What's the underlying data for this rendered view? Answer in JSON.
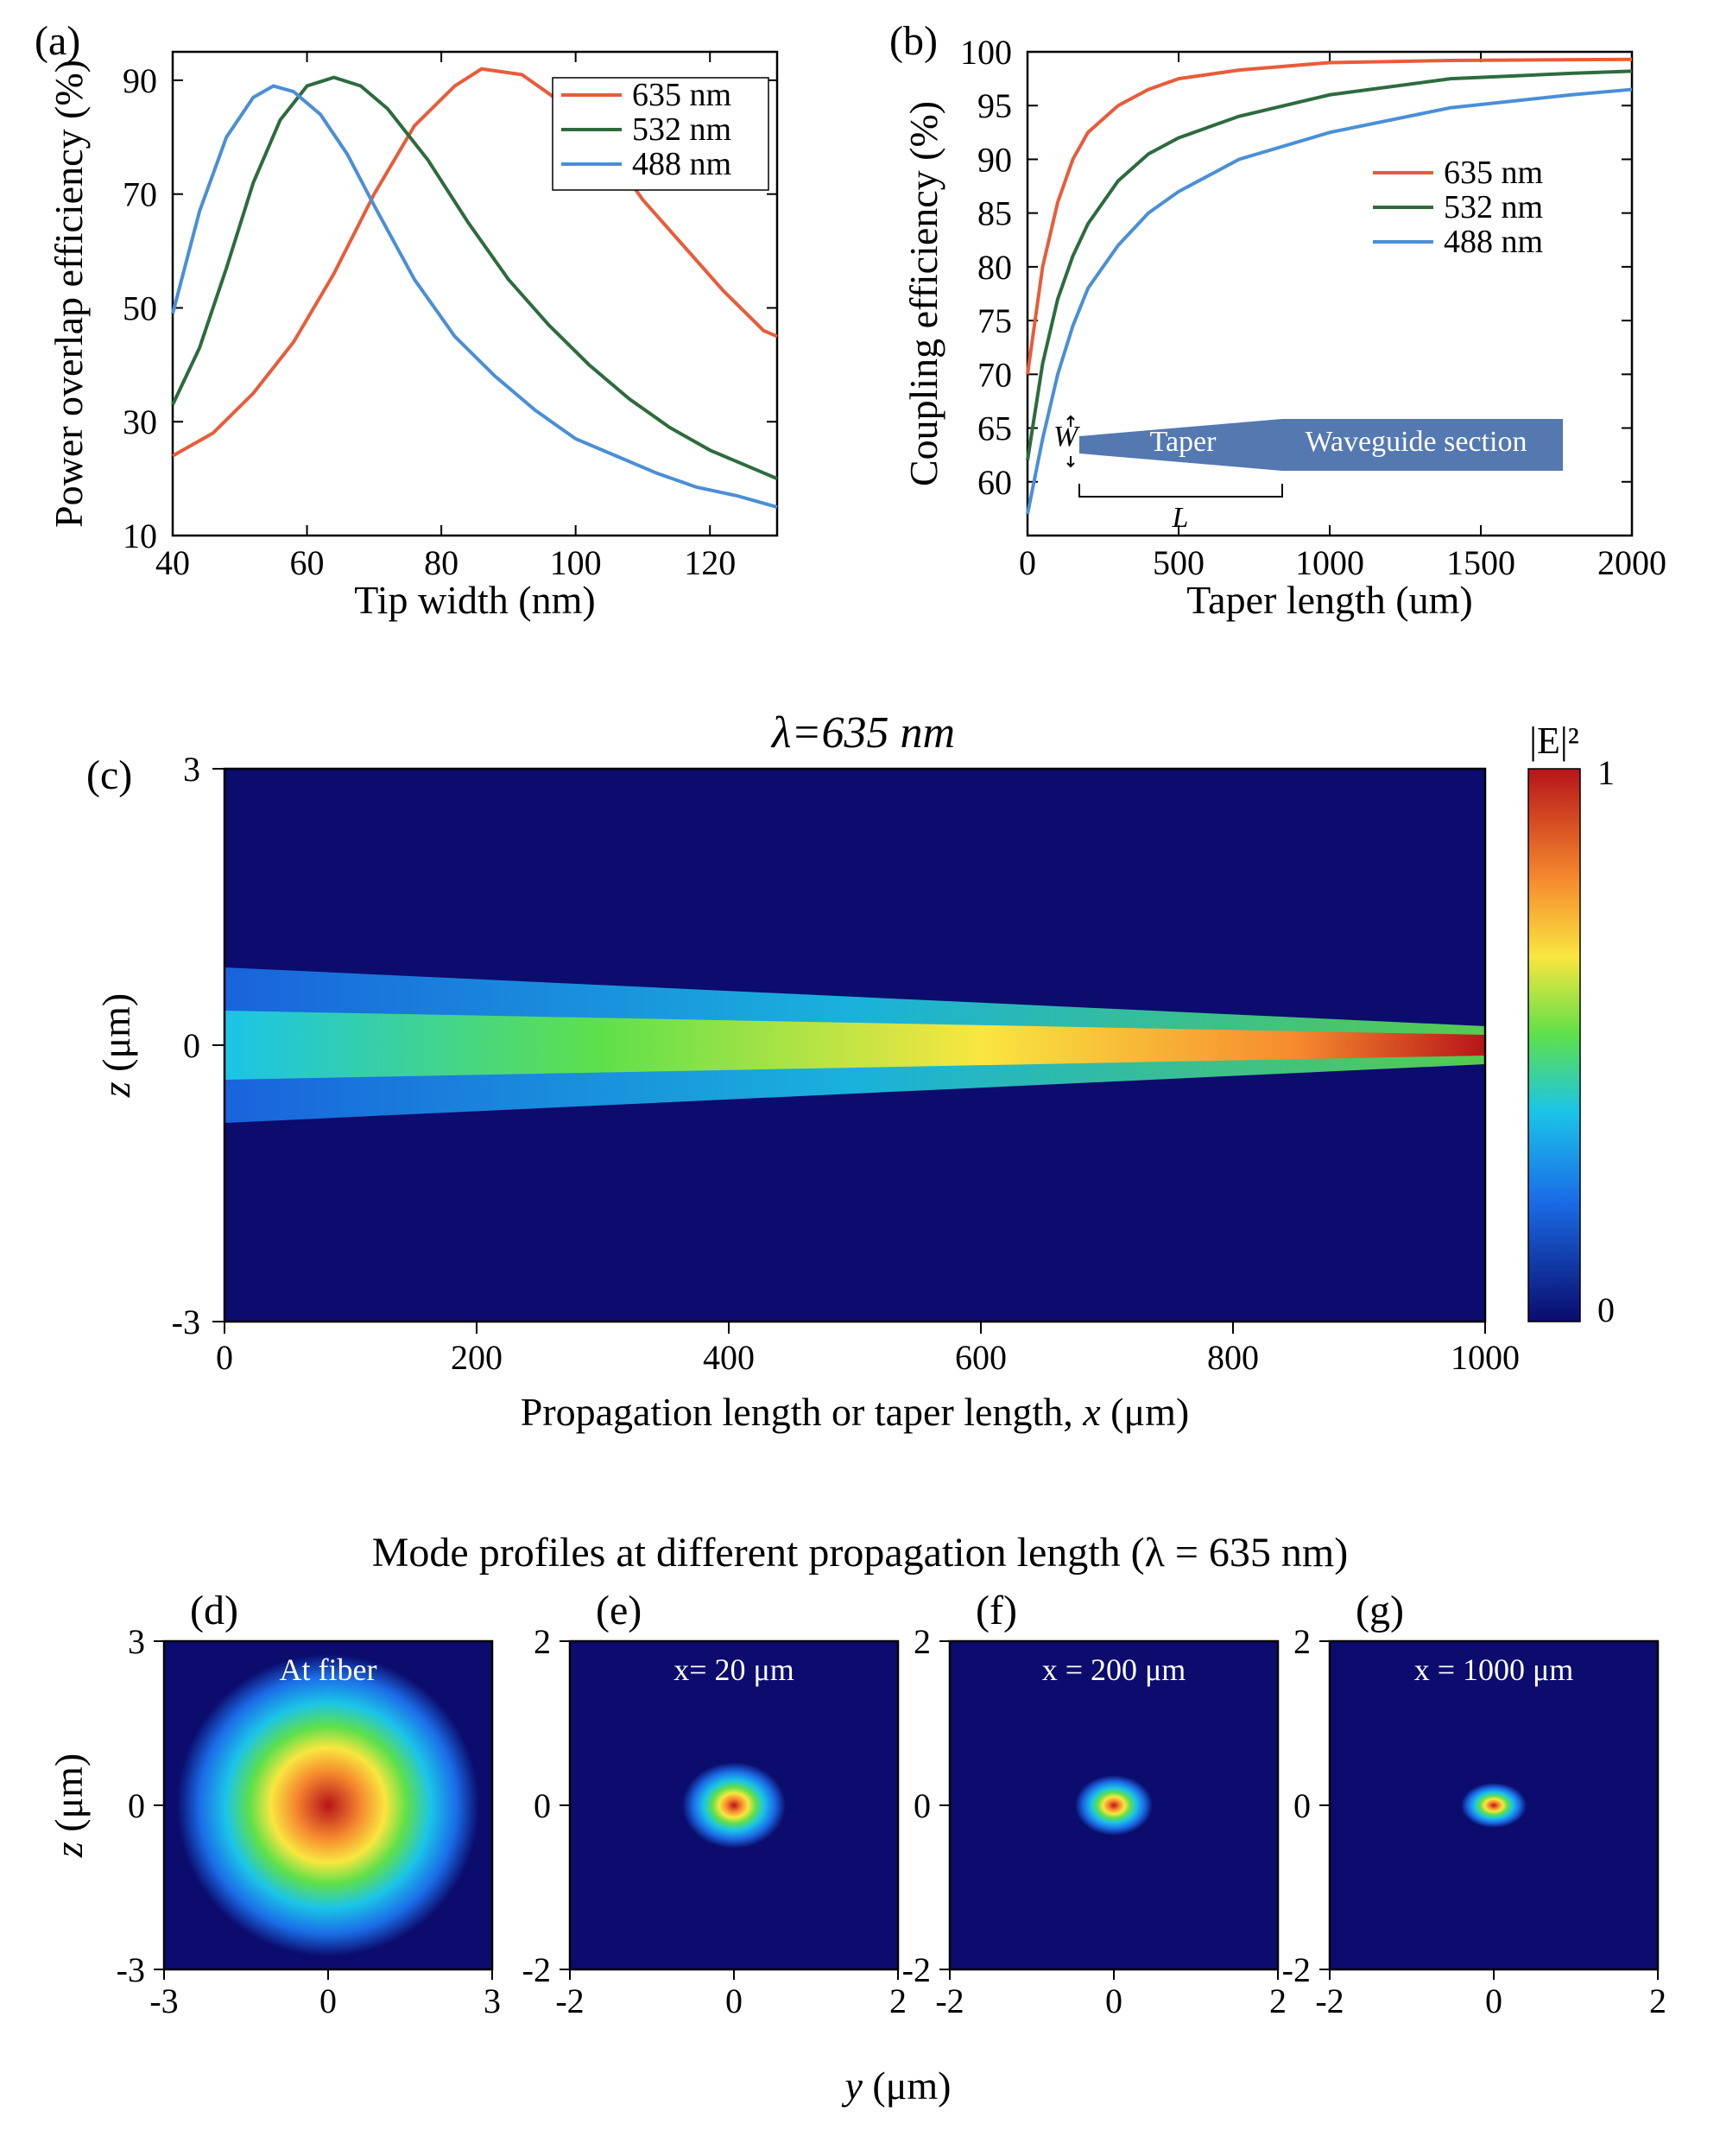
{
  "colors": {
    "line_635": "#e85c3a",
    "line_532": "#2d6b3e",
    "line_488": "#4a8fd6",
    "axis": "#000000",
    "bg": "#ffffff",
    "taper_fill": "#5478b0",
    "taper_text": "#ffffff",
    "cbar_blue": "#0b0c6d",
    "cbar_cyan": "#1bc4e8",
    "cbar_green": "#5fe04a",
    "cbar_yellow": "#f9e640",
    "cbar_orange": "#f68a2e",
    "cbar_red": "#b71419"
  },
  "panel_a": {
    "label": "(a)",
    "xlabel": "Tip width (nm)",
    "ylabel": "Power overlap efficiency (%)",
    "xlim": [
      40,
      130
    ],
    "ylim": [
      10,
      95
    ],
    "xticks": [
      40,
      60,
      80,
      100,
      120
    ],
    "yticks": [
      10,
      30,
      50,
      70,
      90
    ],
    "legend": [
      "635 nm",
      "532 nm",
      "488 nm"
    ],
    "series": {
      "635": {
        "x": [
          40,
          46,
          52,
          58,
          64,
          70,
          76,
          82,
          86,
          92,
          98,
          104,
          110,
          116,
          122,
          128,
          130
        ],
        "y": [
          24,
          28,
          35,
          44,
          56,
          70,
          82,
          89,
          92,
          91,
          86,
          79,
          69,
          61,
          53,
          46,
          45
        ]
      },
      "532": {
        "x": [
          40,
          44,
          48,
          52,
          56,
          60,
          64,
          68,
          72,
          78,
          84,
          90,
          96,
          102,
          108,
          114,
          120,
          126,
          130
        ],
        "y": [
          33,
          43,
          57,
          72,
          83,
          89,
          90.5,
          89,
          85,
          76,
          65,
          55,
          47,
          40,
          34,
          29,
          25,
          22,
          20
        ]
      },
      "488": {
        "x": [
          40,
          44,
          48,
          52,
          55,
          58,
          62,
          66,
          70,
          76,
          82,
          88,
          94,
          100,
          106,
          112,
          118,
          124,
          130
        ],
        "y": [
          49,
          67,
          80,
          87,
          89,
          88,
          84,
          77,
          68,
          55,
          45,
          38,
          32,
          27,
          24,
          21,
          18.5,
          17,
          15
        ]
      }
    }
  },
  "panel_b": {
    "label": "(b)",
    "xlabel": "Taper length (um)",
    "ylabel": "Coupling efficiency (%)",
    "xlim": [
      0,
      2000
    ],
    "ylim": [
      55,
      100
    ],
    "xticks": [
      0,
      500,
      1000,
      1500,
      2000
    ],
    "yticks": [
      60,
      65,
      70,
      75,
      80,
      85,
      90,
      95,
      100
    ],
    "legend": [
      "635 nm",
      "532 nm",
      "488 nm"
    ],
    "series": {
      "635": {
        "x": [
          0,
          50,
          100,
          150,
          200,
          300,
          400,
          500,
          700,
          1000,
          1400,
          2000
        ],
        "y": [
          70,
          80,
          86,
          90,
          92.5,
          95,
          96.5,
          97.5,
          98.3,
          99,
          99.2,
          99.3
        ]
      },
      "532": {
        "x": [
          0,
          50,
          100,
          150,
          200,
          300,
          400,
          500,
          700,
          1000,
          1400,
          1800,
          2000
        ],
        "y": [
          62,
          71,
          77,
          81,
          84,
          88,
          90.5,
          92,
          94,
          96,
          97.5,
          98,
          98.2
        ]
      },
      "488": {
        "x": [
          0,
          50,
          100,
          150,
          200,
          300,
          400,
          500,
          700,
          1000,
          1400,
          1800,
          2000
        ],
        "y": [
          57,
          64,
          70,
          74.5,
          78,
          82,
          85,
          87,
          90,
          92.5,
          94.8,
          96,
          96.5
        ]
      }
    },
    "inset": {
      "W": "W",
      "L": "L",
      "taper": "Taper",
      "wg": "Waveguide section"
    }
  },
  "panel_c": {
    "label": "(c)",
    "title": "λ=635 nm",
    "xlabel": "Propagation length or taper length, x (μm)",
    "ylabel": "z (μm)",
    "xlim": [
      0,
      1000
    ],
    "ylim": [
      -3,
      3
    ],
    "xticks": [
      0,
      200,
      400,
      600,
      800,
      1000
    ],
    "yticks": [
      -3,
      0,
      3
    ],
    "cbar_label": "|E|²",
    "cbar_ticks": [
      "1",
      "0"
    ]
  },
  "modes_title": "Mode profiles at different propagation length (λ = 635 nm)",
  "panel_d": {
    "label": "(d)",
    "text": "At fiber",
    "xlabel": "",
    "ylabel": "z (μm)",
    "xlim": [
      -3,
      3
    ],
    "ylim": [
      -3,
      3
    ],
    "xticks": [
      -3,
      0,
      3
    ],
    "yticks": [
      -3,
      0,
      3
    ]
  },
  "panel_e": {
    "label": "(e)",
    "text": "x= 20 μm",
    "xlim": [
      -2,
      2
    ],
    "ylim": [
      -2,
      2
    ],
    "xticks": [
      -2,
      0,
      2
    ],
    "yticks": [
      -2,
      0,
      2
    ]
  },
  "panel_f": {
    "label": "(f)",
    "text": "x = 200 μm",
    "xlim": [
      -2,
      2
    ],
    "ylim": [
      -2,
      2
    ],
    "xticks": [
      -2,
      0,
      2
    ],
    "yticks": [
      -2,
      0,
      2
    ]
  },
  "panel_g": {
    "label": "(g)",
    "text": "x = 1000 μm",
    "xlim": [
      -2,
      2
    ],
    "ylim": [
      -2,
      2
    ],
    "xticks": [
      -2,
      0,
      2
    ],
    "yticks": [
      -2,
      0,
      2
    ]
  },
  "y_axis_label_bottom": "y (μm)",
  "font": {
    "panel_label_size": 48,
    "axis_label_size": 46,
    "tick_size": 40,
    "legend_size": 38,
    "title_size": 52,
    "inset_text_size": 34
  }
}
